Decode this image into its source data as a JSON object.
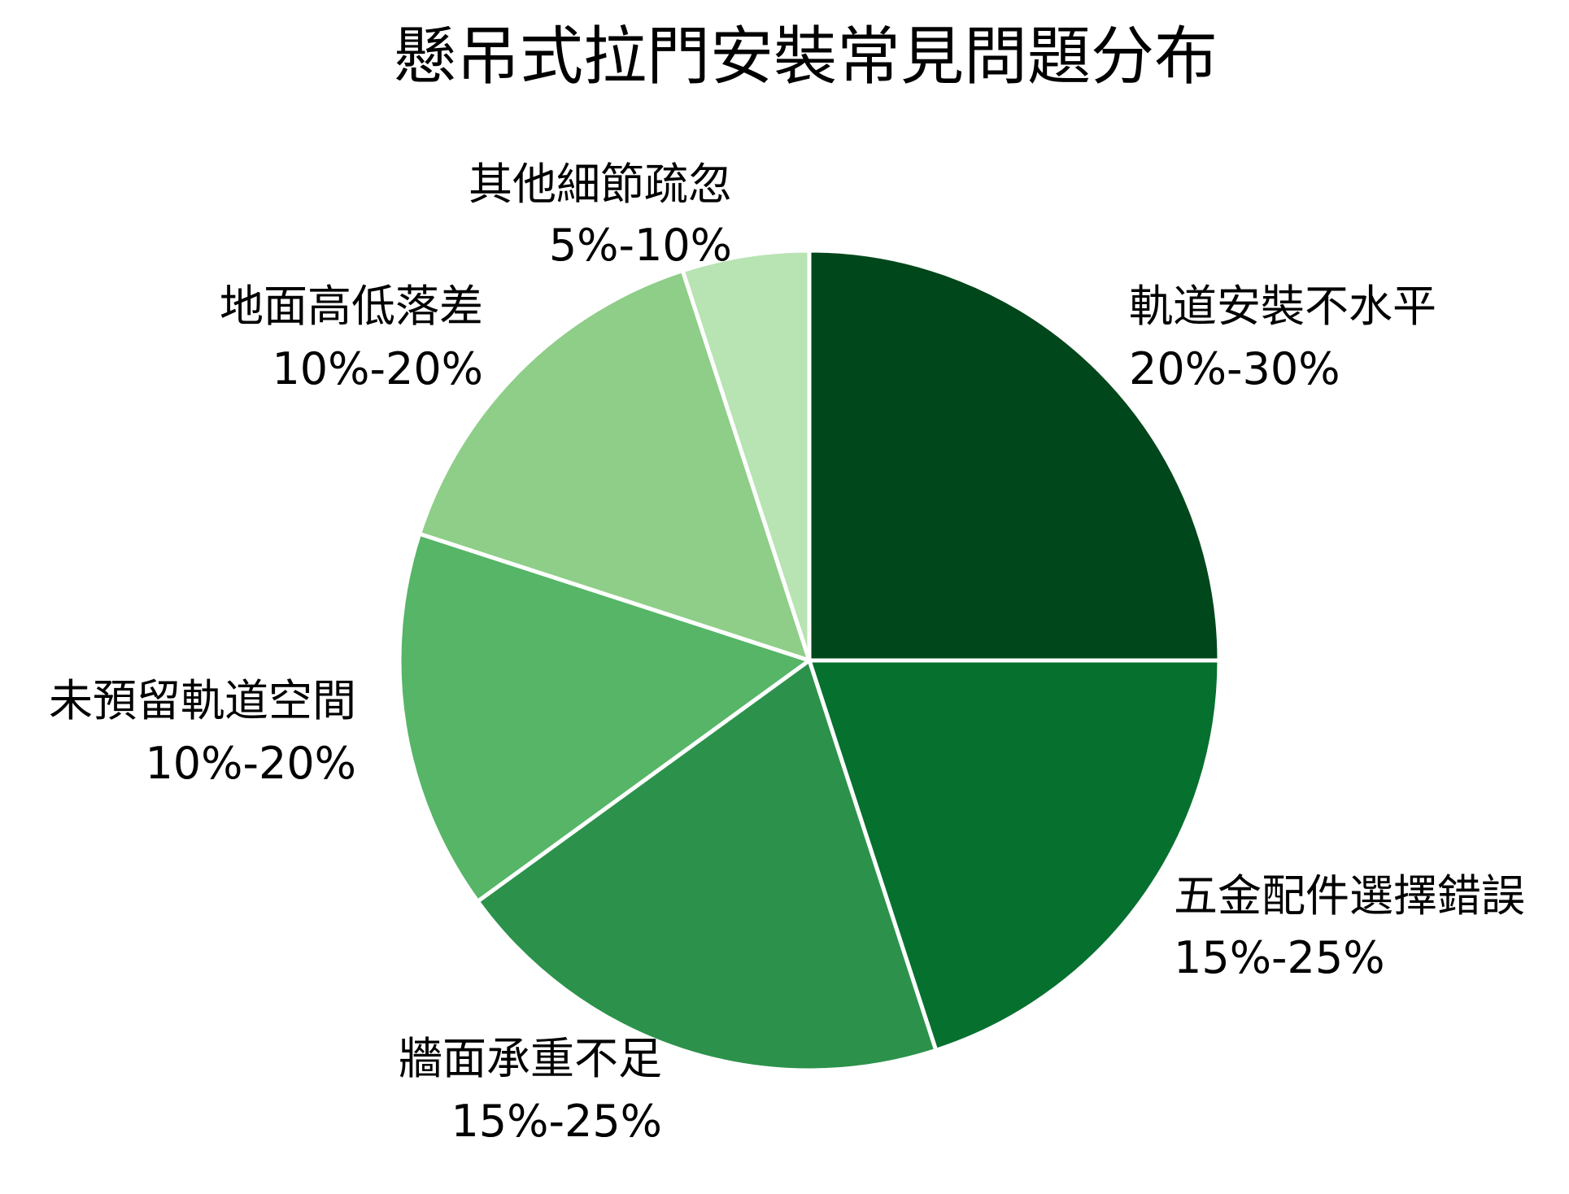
{
  "chart_data": {
    "type": "pie",
    "title": "懸吊式拉門安裝常見問題分布",
    "start_angle": "12 o'clock",
    "direction": "clockwise",
    "slices": [
      {
        "label": "軌道安裝不水平",
        "range_text": "20%-30%",
        "value": 25,
        "color": "#00471b"
      },
      {
        "label": "五金配件選擇錯誤",
        "range_text": "15%-25%",
        "value": 20,
        "color": "#06702f"
      },
      {
        "label": "牆面承重不足",
        "range_text": "15%-25%",
        "value": 20,
        "color": "#2c924b"
      },
      {
        "label": "未預留軌道空間",
        "range_text": "10%-20%",
        "value": 15,
        "color": "#56b567"
      },
      {
        "label": "地面高低落差",
        "range_text": "10%-20%",
        "value": 15,
        "color": "#8ece88"
      },
      {
        "label": "其他細節疏忽",
        "range_text": "5%-10%",
        "value": 5,
        "color": "#b8e3b2"
      }
    ]
  }
}
